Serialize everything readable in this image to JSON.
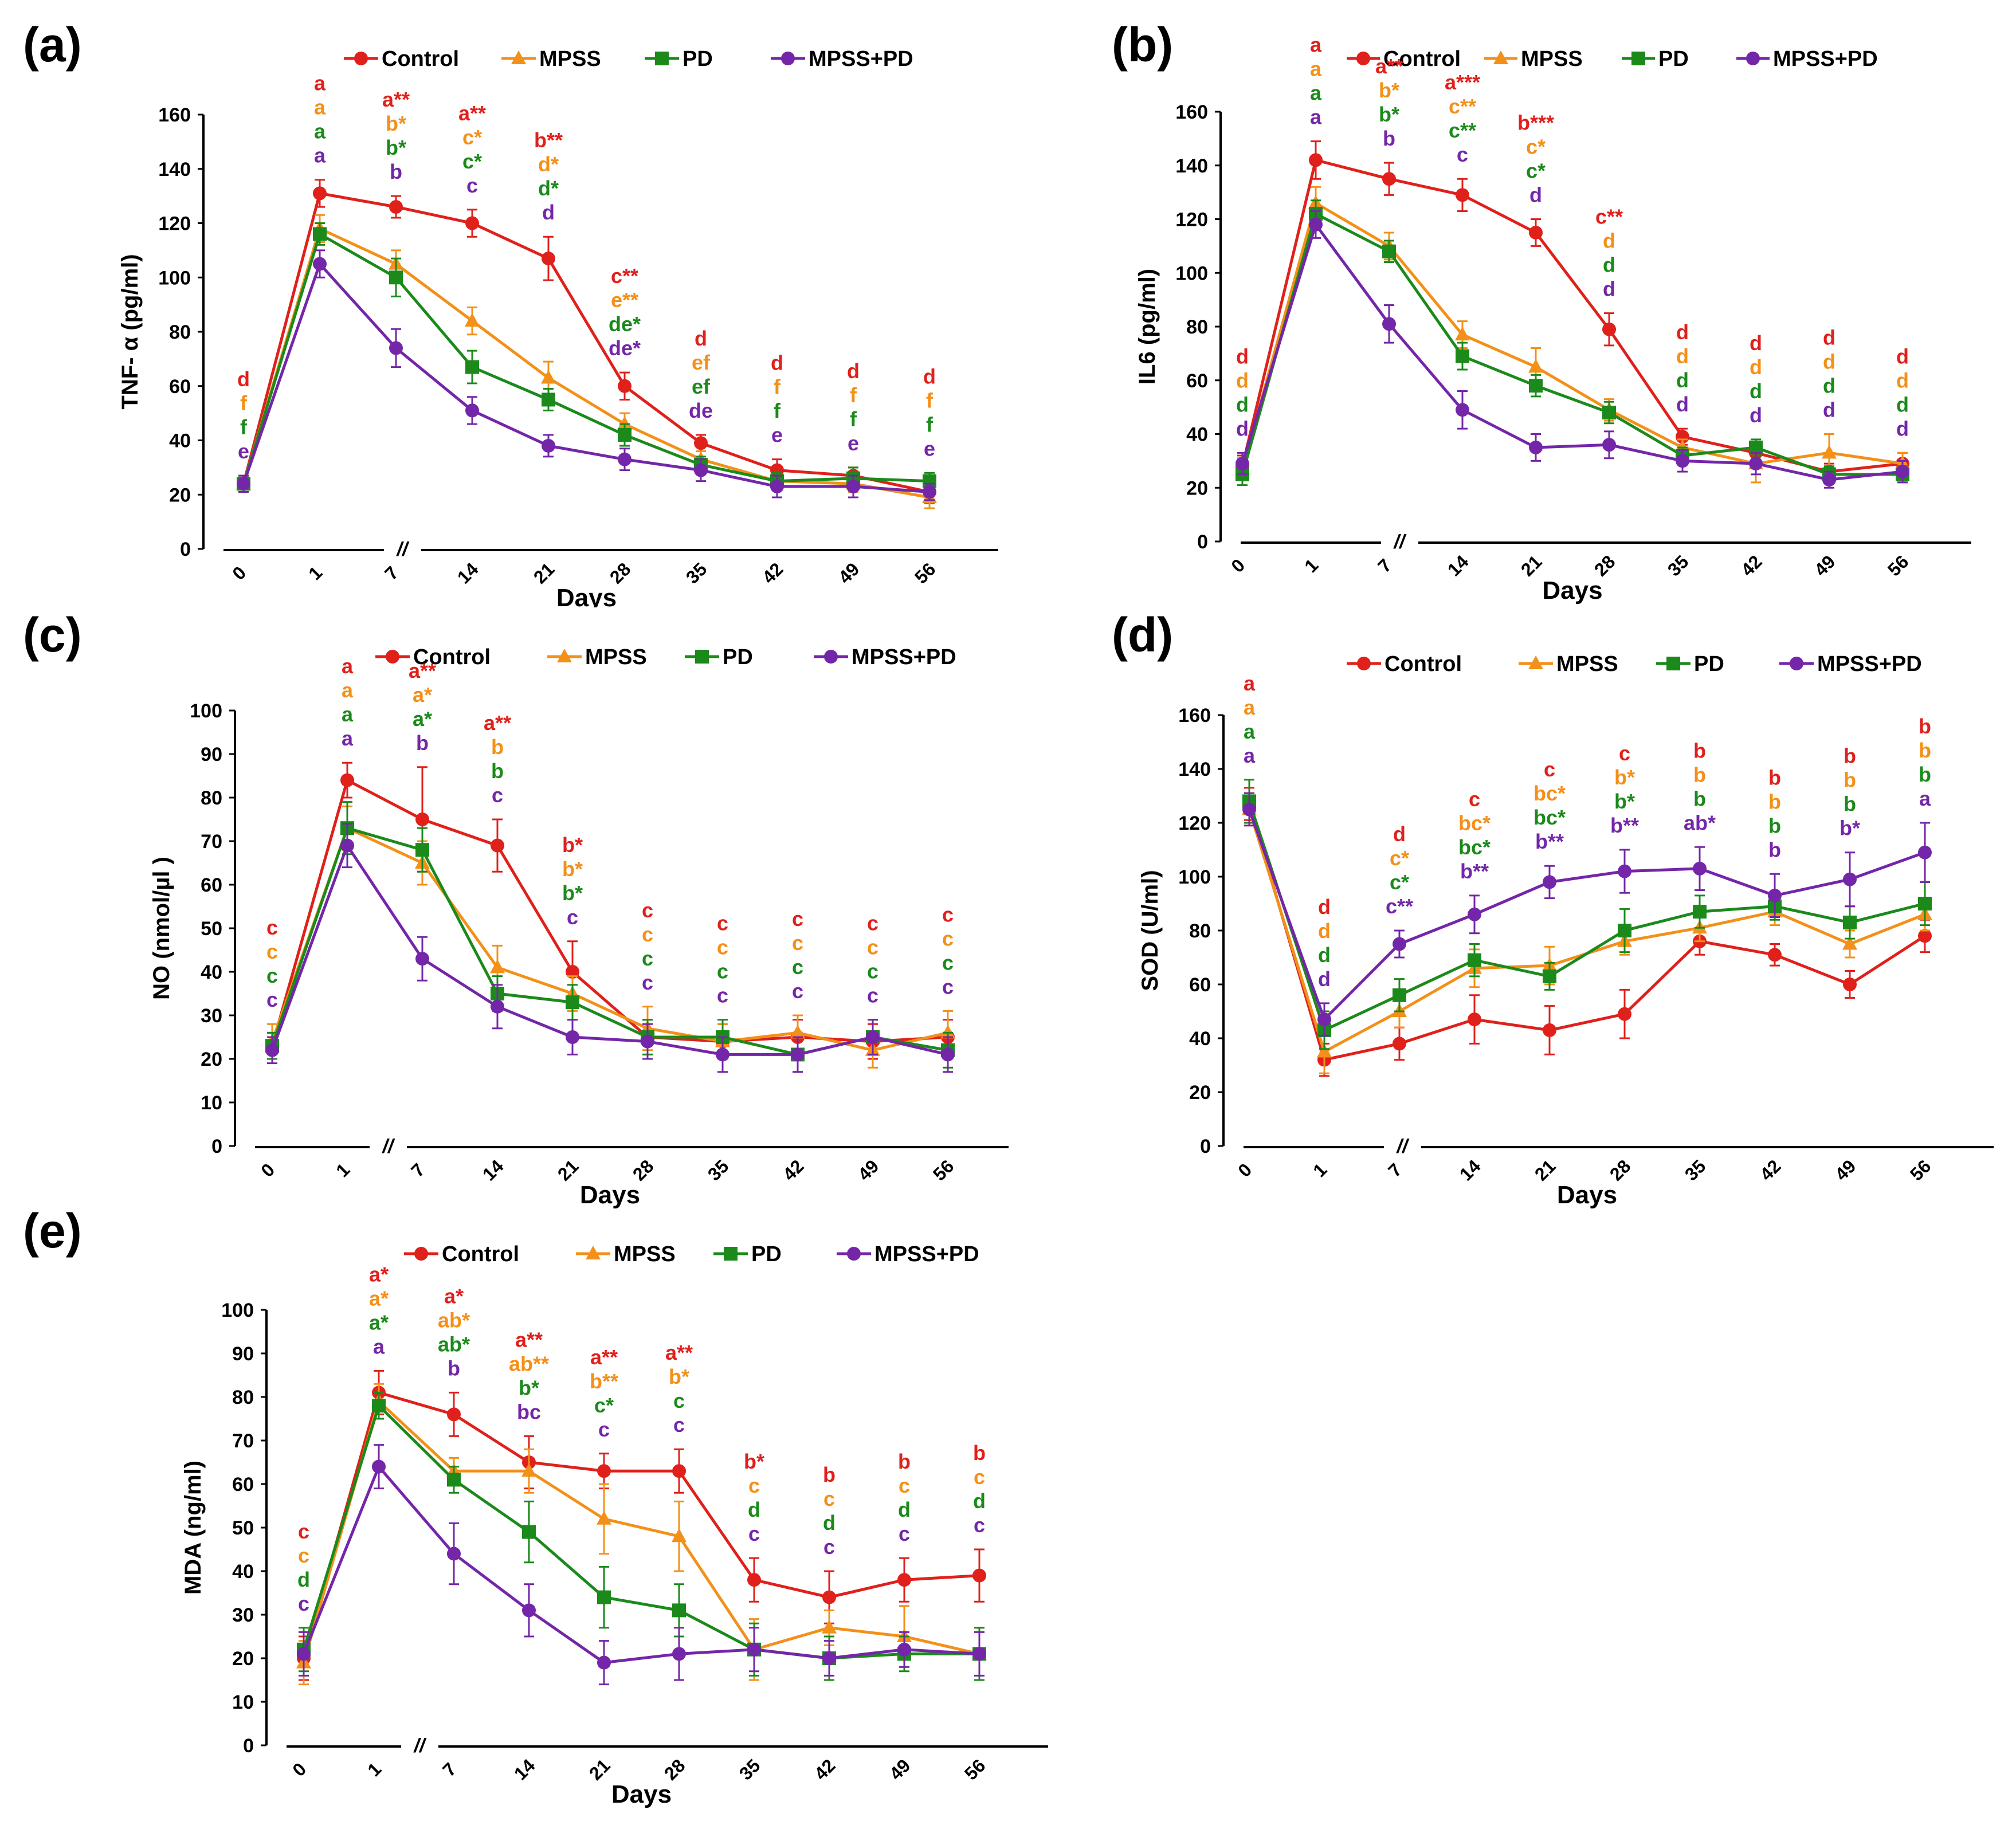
{
  "colors": {
    "Control": "#e0201b",
    "MPSS": "#f39019",
    "PD": "#1b8a1b",
    "MPSS+PD": "#7426a8",
    "axis": "#000000"
  },
  "chart_data": [
    {
      "id": "a",
      "panel_label": "(a)",
      "type": "line",
      "ylabel": "TNF- α (pg/ml)",
      "xlabel": "Days",
      "ylim": [
        0,
        160
      ],
      "yticks": [
        0,
        20,
        40,
        60,
        80,
        100,
        120,
        140,
        160
      ],
      "categories": [
        "0",
        "1",
        "7",
        "14",
        "21",
        "28",
        "35",
        "42",
        "49",
        "56"
      ],
      "break_mark": "//",
      "legend": [
        "Control",
        "MPSS",
        "PD",
        "MPSS+PD"
      ],
      "series": [
        {
          "name": "Control",
          "marker": "circle",
          "values": [
            24,
            131,
            126,
            120,
            107,
            60,
            39,
            29,
            27,
            21
          ],
          "errors": [
            3,
            5,
            4,
            5,
            8,
            5,
            3,
            4,
            3,
            4
          ],
          "labels": [
            "d",
            "a",
            "a**",
            "a**",
            "b**",
            "c**",
            "d",
            "d",
            "d",
            "d"
          ]
        },
        {
          "name": "MPSS",
          "marker": "triangle",
          "values": [
            24,
            118,
            105,
            84,
            63,
            46,
            33,
            25,
            24,
            19
          ],
          "errors": [
            3,
            5,
            5,
            5,
            6,
            4,
            3,
            3,
            3,
            4
          ],
          "labels": [
            "f",
            "a",
            "b*",
            "c*",
            "d*",
            "e**",
            "ef",
            "f",
            "f",
            "f"
          ]
        },
        {
          "name": "PD",
          "marker": "square",
          "values": [
            24,
            116,
            100,
            67,
            55,
            42,
            31,
            25,
            26,
            25
          ],
          "errors": [
            3,
            4,
            7,
            6,
            4,
            4,
            3,
            3,
            4,
            3
          ],
          "labels": [
            "f",
            "a",
            "b*",
            "c*",
            "d*",
            "de*",
            "ef",
            "f",
            "f",
            "f"
          ]
        },
        {
          "name": "MPSS+PD",
          "marker": "circle",
          "values": [
            24,
            105,
            74,
            51,
            38,
            33,
            29,
            23,
            23,
            21
          ],
          "errors": [
            3,
            5,
            7,
            5,
            4,
            4,
            4,
            4,
            4,
            3
          ],
          "labels": [
            "e",
            "a",
            "b",
            "c",
            "d",
            "de*",
            "de",
            "e",
            "e",
            "e"
          ]
        }
      ]
    },
    {
      "id": "b",
      "panel_label": "(b)",
      "type": "line",
      "ylabel": "IL6 (pg/ml)",
      "xlabel": "Days",
      "ylim": [
        0,
        160
      ],
      "yticks": [
        0,
        20,
        40,
        60,
        80,
        100,
        120,
        140,
        160
      ],
      "categories": [
        "0",
        "1",
        "7",
        "14",
        "21",
        "28",
        "35",
        "42",
        "49",
        "56"
      ],
      "break_mark": "//",
      "legend": [
        "Control",
        "MPSS",
        "PD",
        "MPSS+PD"
      ],
      "series": [
        {
          "name": "Control",
          "marker": "circle",
          "values": [
            28,
            142,
            135,
            129,
            115,
            79,
            39,
            33,
            26,
            29
          ],
          "errors": [
            4,
            7,
            6,
            6,
            5,
            6,
            3,
            3,
            3,
            4
          ],
          "labels": [
            "d",
            "a",
            "a**",
            "a***",
            "b***",
            "c**",
            "d",
            "d",
            "d",
            "d"
          ]
        },
        {
          "name": "MPSS",
          "marker": "triangle",
          "values": [
            27,
            126,
            110,
            77,
            65,
            49,
            35,
            29,
            33,
            29
          ],
          "errors": [
            4,
            6,
            5,
            5,
            7,
            4,
            3,
            7,
            7,
            4
          ],
          "labels": [
            "d",
            "a",
            "b*",
            "c**",
            "c*",
            "d",
            "d",
            "d",
            "d",
            "d"
          ]
        },
        {
          "name": "PD",
          "marker": "square",
          "values": [
            25,
            122,
            108,
            69,
            58,
            48,
            32,
            35,
            25,
            25
          ],
          "errors": [
            4,
            5,
            4,
            5,
            4,
            4,
            3,
            3,
            3,
            3
          ],
          "labels": [
            "d",
            "a",
            "b*",
            "c**",
            "c*",
            "d",
            "d",
            "d",
            "d",
            "d"
          ]
        },
        {
          "name": "MPSS+PD",
          "marker": "circle",
          "values": [
            29,
            118,
            81,
            49,
            35,
            36,
            30,
            29,
            23,
            26
          ],
          "errors": [
            4,
            5,
            7,
            7,
            5,
            5,
            4,
            4,
            3,
            4
          ],
          "labels": [
            "d",
            "a",
            "b",
            "c",
            "d",
            "d",
            "d",
            "d",
            "d",
            "d"
          ]
        }
      ]
    },
    {
      "id": "c",
      "panel_label": "(c)",
      "type": "line",
      "ylabel": "NO (nmol/µl )",
      "xlabel": "Days",
      "ylim": [
        0,
        100
      ],
      "yticks": [
        0,
        10,
        20,
        30,
        40,
        50,
        60,
        70,
        80,
        90,
        100
      ],
      "categories": [
        "0",
        "1",
        "7",
        "14",
        "21",
        "28",
        "35",
        "42",
        "49",
        "56"
      ],
      "break_mark": "//",
      "legend": [
        "Control",
        "MPSS",
        "PD",
        "MPSS+PD"
      ],
      "series": [
        {
          "name": "Control",
          "marker": "circle",
          "values": [
            23,
            84,
            75,
            69,
            40,
            25,
            24,
            25,
            24,
            25
          ],
          "errors": [
            3,
            4,
            12,
            6,
            7,
            4,
            4,
            4,
            4,
            4
          ],
          "labels": [
            "c",
            "a",
            "a**",
            "a**",
            "b*",
            "c",
            "c",
            "c",
            "c",
            "c"
          ]
        },
        {
          "name": "MPSS",
          "marker": "triangle",
          "values": [
            24,
            73,
            65,
            41,
            35,
            27,
            24,
            26,
            22,
            26
          ],
          "errors": [
            4,
            5,
            5,
            5,
            4,
            5,
            4,
            4,
            4,
            5
          ],
          "labels": [
            "c",
            "a",
            "a*",
            "b",
            "b*",
            "c",
            "c",
            "c",
            "c",
            "c"
          ]
        },
        {
          "name": "PD",
          "marker": "square",
          "values": [
            23,
            73,
            68,
            35,
            33,
            25,
            25,
            21,
            25,
            22
          ],
          "errors": [
            3,
            6,
            5,
            4,
            4,
            4,
            4,
            4,
            4,
            4
          ],
          "labels": [
            "c",
            "a",
            "a*",
            "b",
            "b*",
            "c",
            "c",
            "c",
            "c",
            "c"
          ]
        },
        {
          "name": "MPSS+PD",
          "marker": "circle",
          "values": [
            22,
            69,
            43,
            32,
            25,
            24,
            21,
            21,
            25,
            21
          ],
          "errors": [
            3,
            5,
            5,
            5,
            4,
            4,
            4,
            4,
            4,
            4
          ],
          "labels": [
            "c",
            "a",
            "b",
            "c",
            "c",
            "c",
            "c",
            "c",
            "c",
            "c"
          ]
        }
      ]
    },
    {
      "id": "d",
      "panel_label": "(d)",
      "type": "line",
      "ylabel": "SOD (U/ml)",
      "xlabel": "Days",
      "ylim": [
        0,
        160
      ],
      "yticks": [
        0,
        20,
        40,
        60,
        80,
        100,
        120,
        140,
        160
      ],
      "categories": [
        "0",
        "1",
        "7",
        "14",
        "21",
        "28",
        "35",
        "42",
        "49",
        "56"
      ],
      "break_mark": "//",
      "legend": [
        "Control",
        "MPSS",
        "PD",
        "MPSS+PD"
      ],
      "series": [
        {
          "name": "Control",
          "marker": "circle",
          "values": [
            127,
            32,
            38,
            47,
            43,
            49,
            76,
            71,
            60,
            78
          ],
          "errors": [
            6,
            6,
            6,
            9,
            9,
            9,
            5,
            4,
            5,
            6
          ],
          "labels": [
            "a",
            "d",
            "d",
            "c",
            "c",
            "c",
            "b",
            "b",
            "b",
            "b"
          ]
        },
        {
          "name": "MPSS",
          "marker": "triangle",
          "values": [
            125,
            35,
            50,
            66,
            67,
            76,
            81,
            87,
            75,
            86
          ],
          "errors": [
            6,
            8,
            6,
            7,
            7,
            5,
            5,
            5,
            5,
            6
          ],
          "labels": [
            "a",
            "d",
            "c*",
            "bc*",
            "bc*",
            "b*",
            "b",
            "b",
            "b",
            "b"
          ]
        },
        {
          "name": "PD",
          "marker": "square",
          "values": [
            128,
            43,
            56,
            69,
            63,
            80,
            87,
            89,
            83,
            90
          ],
          "errors": [
            8,
            7,
            6,
            6,
            5,
            8,
            6,
            5,
            6,
            8
          ],
          "labels": [
            "a",
            "d",
            "c*",
            "bc*",
            "bc*",
            "b*",
            "b",
            "b",
            "b",
            "b"
          ]
        },
        {
          "name": "MPSS+PD",
          "marker": "circle",
          "values": [
            125,
            47,
            75,
            86,
            98,
            102,
            103,
            93,
            99,
            109
          ],
          "errors": [
            6,
            6,
            5,
            7,
            6,
            8,
            8,
            8,
            10,
            11
          ],
          "labels": [
            "a",
            "d",
            "c**",
            "b**",
            "b**",
            "b**",
            "ab*",
            "b",
            "b*",
            "a"
          ]
        }
      ]
    },
    {
      "id": "e",
      "panel_label": "(e)",
      "type": "line",
      "ylabel": "MDA (ng/ml)",
      "xlabel": "Days",
      "ylim": [
        0,
        100
      ],
      "yticks": [
        0,
        10,
        20,
        30,
        40,
        50,
        60,
        70,
        80,
        90,
        100
      ],
      "categories": [
        "0",
        "1",
        "7",
        "14",
        "21",
        "28",
        "35",
        "42",
        "49",
        "56"
      ],
      "break_mark": "//",
      "legend": [
        "Control",
        "MPSS",
        "PD",
        "MPSS+PD"
      ],
      "series": [
        {
          "name": "Control",
          "marker": "circle",
          "values": [
            20,
            81,
            76,
            65,
            63,
            63,
            38,
            34,
            38,
            39
          ],
          "errors": [
            5,
            5,
            5,
            6,
            4,
            5,
            5,
            6,
            5,
            6
          ],
          "labels": [
            "c",
            "a*",
            "a*",
            "a**",
            "a**",
            "a**",
            "b*",
            "b",
            "b",
            "b"
          ]
        },
        {
          "name": "MPSS",
          "marker": "triangle",
          "values": [
            19,
            79,
            63,
            63,
            52,
            48,
            22,
            27,
            25,
            21
          ],
          "errors": [
            5,
            4,
            3,
            5,
            8,
            8,
            7,
            4,
            7,
            6
          ],
          "labels": [
            "c",
            "a*",
            "ab*",
            "ab**",
            "b**",
            "b*",
            "c",
            "c",
            "c",
            "c"
          ]
        },
        {
          "name": "PD",
          "marker": "square",
          "values": [
            22,
            78,
            61,
            49,
            34,
            31,
            22,
            20,
            21,
            21
          ],
          "errors": [
            5,
            3,
            3,
            7,
            7,
            6,
            6,
            5,
            4,
            6
          ],
          "labels": [
            "d",
            "a*",
            "ab*",
            "b*",
            "c*",
            "c",
            "d",
            "d",
            "d",
            "d"
          ]
        },
        {
          "name": "MPSS+PD",
          "marker": "circle",
          "values": [
            21,
            64,
            44,
            31,
            19,
            21,
            22,
            20,
            22,
            21
          ],
          "errors": [
            5,
            5,
            7,
            6,
            5,
            6,
            5,
            4,
            4,
            5
          ],
          "labels": [
            "c",
            "a",
            "b",
            "bc",
            "c",
            "c",
            "c",
            "c",
            "c",
            "c"
          ]
        }
      ]
    }
  ]
}
